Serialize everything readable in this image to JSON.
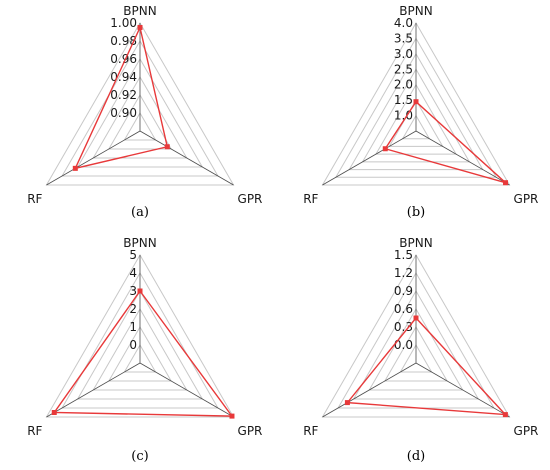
{
  "colors": {
    "grid": "#c8c8c8",
    "axis": "#4d4d4d",
    "series": "#e8393a"
  },
  "chart_data": [
    {
      "type": "radar",
      "panel_label": "(a)",
      "axes": [
        "BPNN",
        "GPR",
        "RF"
      ],
      "ticks": [
        "0.90",
        "0.92",
        "0.94",
        "0.96",
        "0.98",
        "1.00"
      ],
      "range": [
        0.88,
        1.0
      ],
      "values": [
        0.995,
        0.915,
        0.963
      ]
    },
    {
      "type": "radar",
      "panel_label": "(b)",
      "axes": [
        "BPNN",
        "GPR",
        "RF"
      ],
      "ticks": [
        "1.0",
        "1.5",
        "2.0",
        "2.5",
        "3.0",
        "3.5",
        "4.0"
      ],
      "range": [
        0.5,
        4.0
      ],
      "values": [
        1.45,
        3.85,
        1.65
      ]
    },
    {
      "type": "radar",
      "panel_label": "(c)",
      "axes": [
        "BPNN",
        "GPR",
        "RF"
      ],
      "ticks": [
        "0",
        "1",
        "2",
        "3",
        "4",
        "5"
      ],
      "range": [
        -1,
        5
      ],
      "values": [
        3.0,
        4.9,
        4.5
      ]
    },
    {
      "type": "radar",
      "panel_label": "(d)",
      "axes": [
        "BPNN",
        "GPR",
        "RF"
      ],
      "ticks": [
        "0.0",
        "0.3",
        "0.6",
        "0.9",
        "1.2",
        "1.5"
      ],
      "range": [
        -0.3,
        1.5
      ],
      "values": [
        0.45,
        1.42,
        1.02
      ]
    }
  ]
}
